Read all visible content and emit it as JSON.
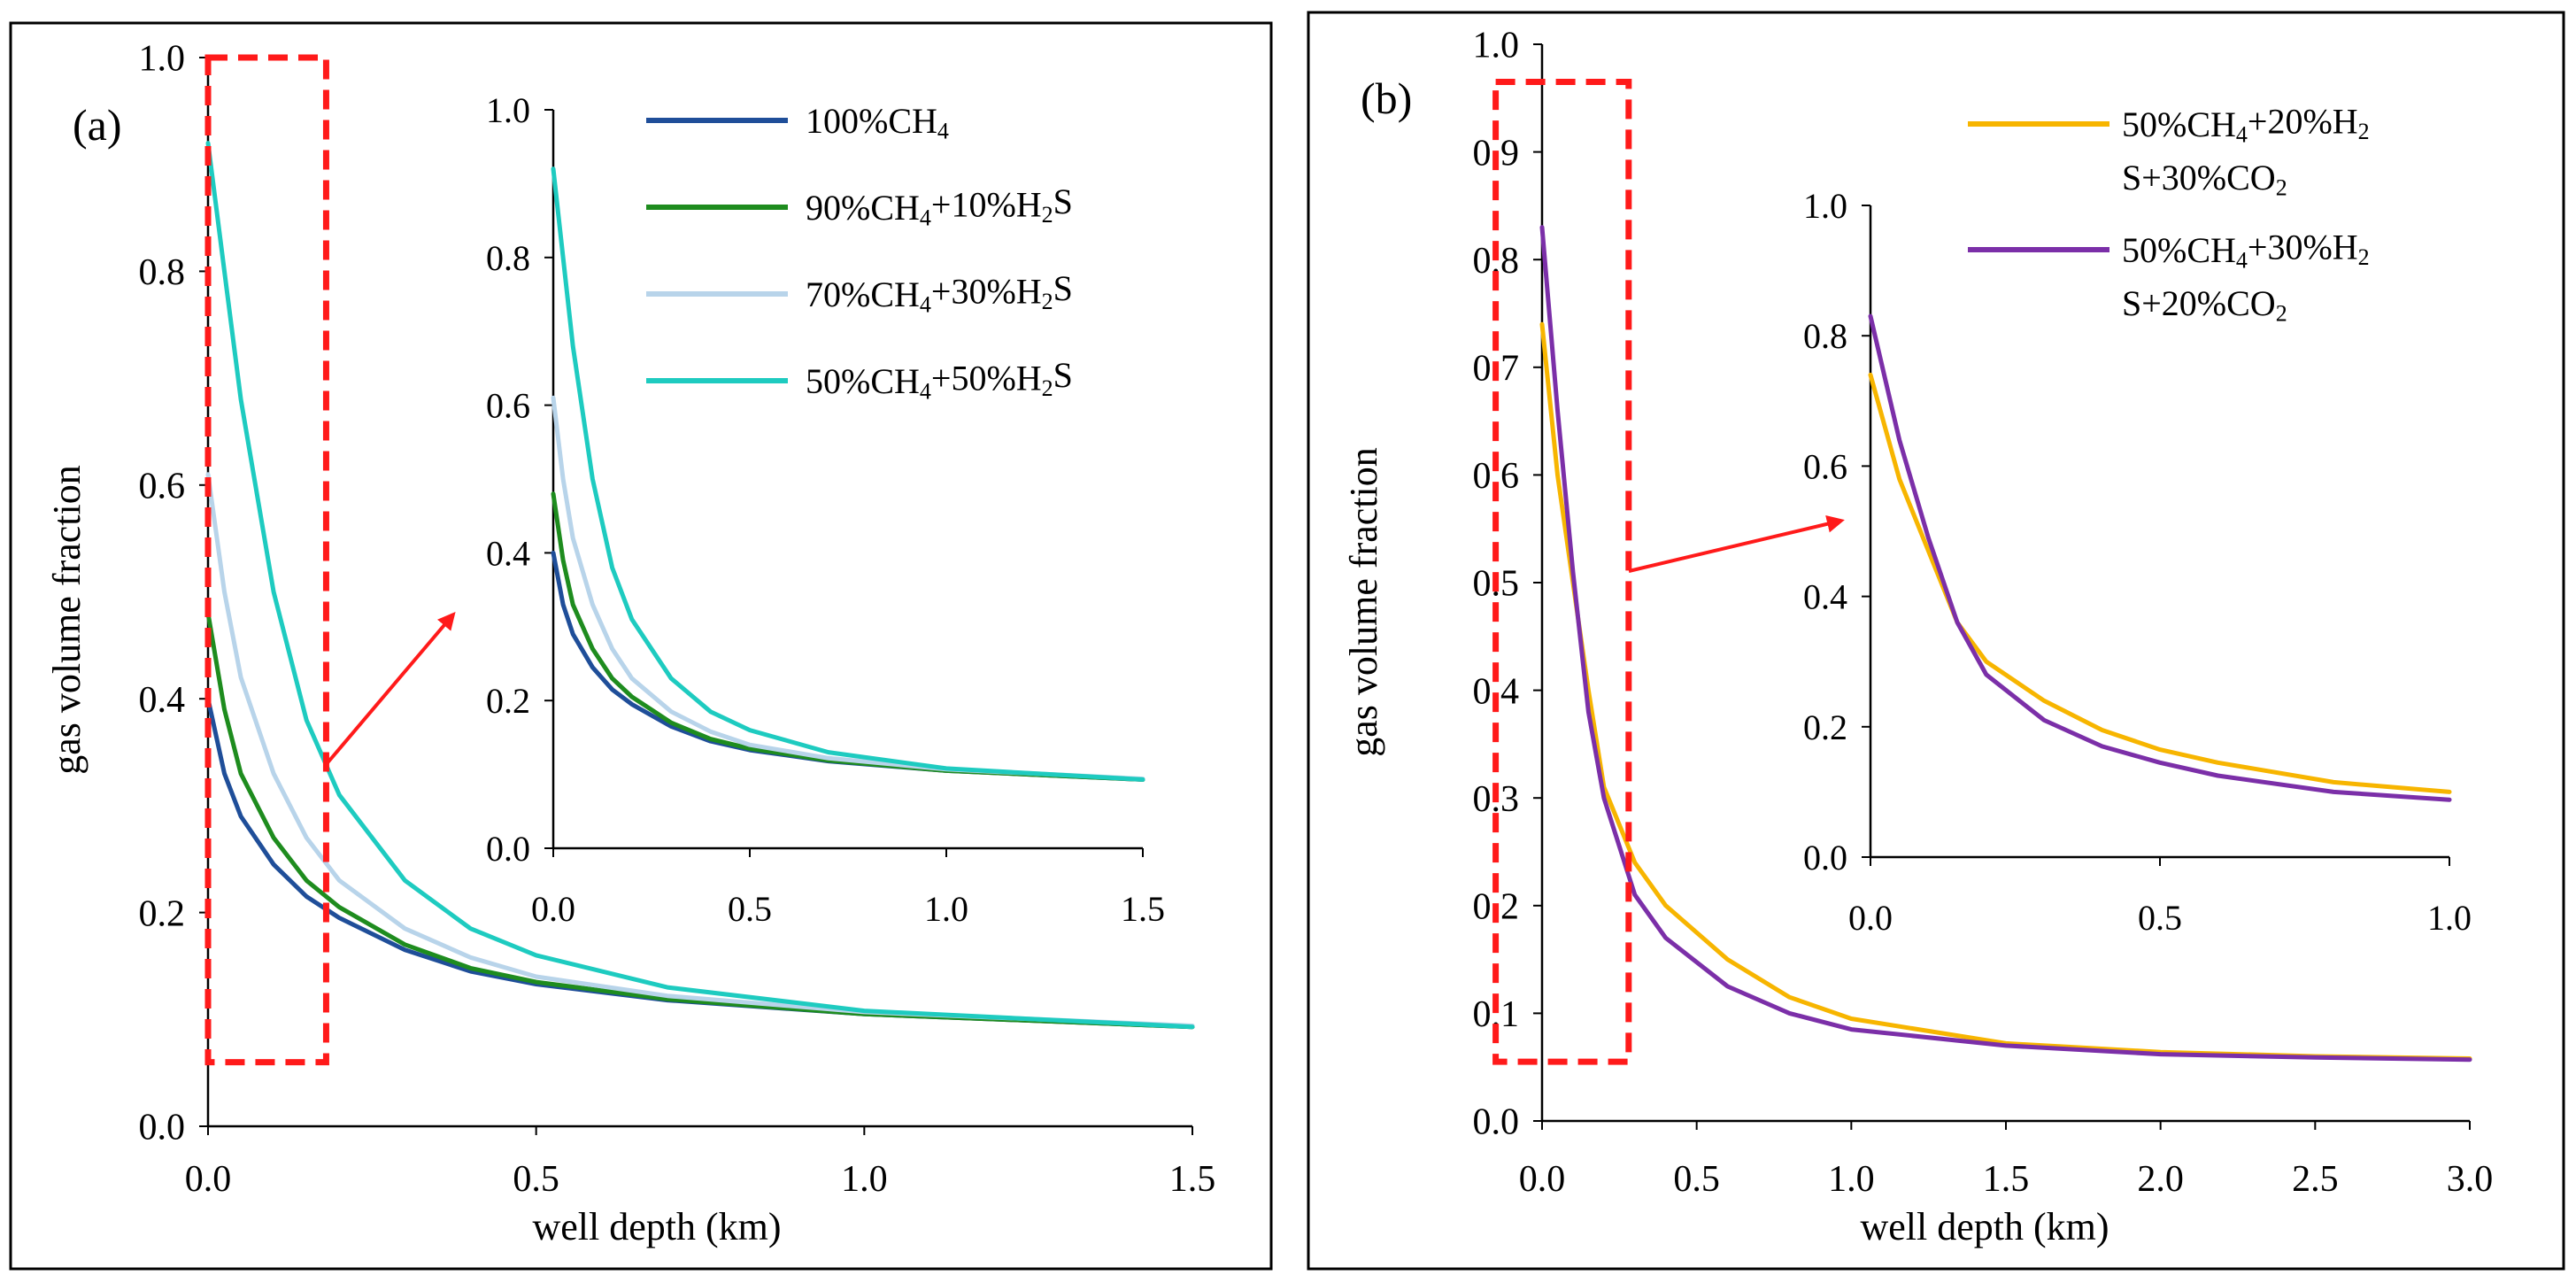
{
  "chart_data": [
    {
      "type": "line",
      "panel_label": "(a)",
      "xlabel": "well depth (km)",
      "ylabel": "gas volume fraction",
      "xlim": [
        0,
        1.5
      ],
      "ylim": [
        0,
        1.0
      ],
      "xticks": [
        "0.0",
        "0.5",
        "1.0",
        "1.5"
      ],
      "yticks": [
        "0.0",
        "0.2",
        "0.4",
        "0.6",
        "0.8",
        "1.0"
      ],
      "legend_position": "top-right",
      "highlight_box": {
        "x_range": [
          0,
          0.18
        ],
        "y_range": [
          0.06,
          1.0
        ],
        "color": "#ff1a1a"
      },
      "series": [
        {
          "name_parts": [
            [
              "100%CH",
              "normal"
            ],
            [
              "4",
              "sub"
            ]
          ],
          "color": "#1f4e99",
          "x": [
            0,
            0.025,
            0.05,
            0.1,
            0.15,
            0.2,
            0.3,
            0.4,
            0.5,
            0.7,
            1.0,
            1.5
          ],
          "values": [
            0.4,
            0.33,
            0.29,
            0.245,
            0.215,
            0.195,
            0.165,
            0.145,
            0.133,
            0.118,
            0.105,
            0.093
          ]
        },
        {
          "name_parts": [
            [
              "90%CH",
              "normal"
            ],
            [
              "4",
              "sub"
            ],
            [
              "+10%H",
              "normal"
            ],
            [
              "2",
              "sub"
            ],
            [
              "S",
              "normal"
            ]
          ],
          "color": "#1e8c1e",
          "x": [
            0,
            0.025,
            0.05,
            0.1,
            0.15,
            0.2,
            0.3,
            0.4,
            0.5,
            0.7,
            1.0,
            1.5
          ],
          "values": [
            0.48,
            0.39,
            0.33,
            0.27,
            0.23,
            0.205,
            0.17,
            0.148,
            0.135,
            0.119,
            0.105,
            0.093
          ]
        },
        {
          "name_parts": [
            [
              "70%CH",
              "normal"
            ],
            [
              "4",
              "sub"
            ],
            [
              "+30%H",
              "normal"
            ],
            [
              "2",
              "sub"
            ],
            [
              "S",
              "normal"
            ]
          ],
          "color": "#b8d4ea",
          "x": [
            0,
            0.025,
            0.05,
            0.1,
            0.15,
            0.2,
            0.3,
            0.4,
            0.5,
            0.7,
            1.0,
            1.5
          ],
          "values": [
            0.61,
            0.5,
            0.42,
            0.33,
            0.27,
            0.23,
            0.185,
            0.158,
            0.14,
            0.122,
            0.107,
            0.094
          ]
        },
        {
          "name_parts": [
            [
              "50%CH",
              "normal"
            ],
            [
              "4",
              "sub"
            ],
            [
              "+50%H",
              "normal"
            ],
            [
              "2",
              "sub"
            ],
            [
              "S",
              "normal"
            ]
          ],
          "color": "#1ecbc0",
          "x": [
            0,
            0.025,
            0.05,
            0.1,
            0.15,
            0.2,
            0.3,
            0.4,
            0.5,
            0.7,
            1.0,
            1.5
          ],
          "values": [
            0.92,
            0.8,
            0.68,
            0.5,
            0.38,
            0.31,
            0.23,
            0.185,
            0.16,
            0.13,
            0.108,
            0.093
          ]
        }
      ]
    },
    {
      "type": "line",
      "panel_label": "(a) inset",
      "xlim": [
        0,
        1.5
      ],
      "ylim": [
        0,
        1.0
      ],
      "xticks": [
        "0.0",
        "0.5",
        "1.0",
        "1.5"
      ],
      "yticks": [
        "0.0",
        "0.2",
        "0.4",
        "0.6",
        "0.8",
        "1.0"
      ],
      "series": [
        {
          "color": "#1f4e99",
          "x": [
            0,
            0.025,
            0.05,
            0.1,
            0.15,
            0.2,
            0.3,
            0.4,
            0.5,
            0.7,
            1.0,
            1.5
          ],
          "values": [
            0.4,
            0.33,
            0.29,
            0.245,
            0.215,
            0.195,
            0.165,
            0.145,
            0.133,
            0.118,
            0.105,
            0.093
          ]
        },
        {
          "color": "#1e8c1e",
          "x": [
            0,
            0.025,
            0.05,
            0.1,
            0.15,
            0.2,
            0.3,
            0.4,
            0.5,
            0.7,
            1.0,
            1.5
          ],
          "values": [
            0.48,
            0.39,
            0.33,
            0.27,
            0.23,
            0.205,
            0.17,
            0.148,
            0.135,
            0.119,
            0.105,
            0.093
          ]
        },
        {
          "color": "#b8d4ea",
          "x": [
            0,
            0.025,
            0.05,
            0.1,
            0.15,
            0.2,
            0.3,
            0.4,
            0.5,
            0.7,
            1.0,
            1.5
          ],
          "values": [
            0.61,
            0.5,
            0.42,
            0.33,
            0.27,
            0.23,
            0.185,
            0.158,
            0.14,
            0.122,
            0.107,
            0.094
          ]
        },
        {
          "color": "#1ecbc0",
          "x": [
            0,
            0.025,
            0.05,
            0.1,
            0.15,
            0.2,
            0.3,
            0.4,
            0.5,
            0.7,
            1.0,
            1.5
          ],
          "values": [
            0.92,
            0.8,
            0.68,
            0.5,
            0.38,
            0.31,
            0.23,
            0.185,
            0.16,
            0.13,
            0.108,
            0.093
          ]
        }
      ]
    },
    {
      "type": "line",
      "panel_label": "(b)",
      "xlabel": "well depth (km)",
      "ylabel": "gas volume fraction",
      "xlim": [
        0,
        3.0
      ],
      "ylim": [
        0,
        1.0
      ],
      "xticks": [
        "0.0",
        "0.5",
        "1.0",
        "1.5",
        "2.0",
        "2.5",
        "3.0"
      ],
      "yticks": [
        "0.0",
        "0.1",
        "0.2",
        "0.3",
        "0.4",
        "0.5",
        "0.6",
        "0.7",
        "0.8",
        "0.9",
        "1.0"
      ],
      "legend_position": "top-right",
      "highlight_box": {
        "x_range": [
          -0.15,
          0.28
        ],
        "y_range": [
          0.055,
          0.965
        ],
        "color": "#ff1a1a"
      },
      "series": [
        {
          "name_lines": [
            [
              [
                "50%CH",
                "normal"
              ],
              [
                "4",
                "sub"
              ],
              [
                "+20%H",
                "normal"
              ],
              [
                "2",
                "sub"
              ]
            ],
            [
              [
                "S+30%CO",
                "normal"
              ],
              [
                "2",
                "sub"
              ]
            ]
          ],
          "color": "#f7b500",
          "x": [
            0,
            0.05,
            0.1,
            0.15,
            0.2,
            0.3,
            0.4,
            0.6,
            0.8,
            1.0,
            1.5,
            2.0,
            2.5,
            3.0
          ],
          "values": [
            0.74,
            0.6,
            0.5,
            0.4,
            0.31,
            0.24,
            0.2,
            0.15,
            0.115,
            0.095,
            0.072,
            0.064,
            0.06,
            0.058
          ]
        },
        {
          "name_lines": [
            [
              [
                "50%CH",
                "normal"
              ],
              [
                "4",
                "sub"
              ],
              [
                "+30%H",
                "normal"
              ],
              [
                "2",
                "sub"
              ]
            ],
            [
              [
                "S+20%CO",
                "normal"
              ],
              [
                "2",
                "sub"
              ]
            ]
          ],
          "color": "#7b2fa8",
          "x": [
            0,
            0.05,
            0.1,
            0.15,
            0.2,
            0.3,
            0.4,
            0.6,
            0.8,
            1.0,
            1.5,
            2.0,
            2.5,
            3.0
          ],
          "values": [
            0.83,
            0.66,
            0.51,
            0.38,
            0.3,
            0.21,
            0.17,
            0.125,
            0.1,
            0.085,
            0.07,
            0.062,
            0.059,
            0.057
          ]
        }
      ]
    },
    {
      "type": "line",
      "panel_label": "(b) inset",
      "xlim": [
        0,
        1.0
      ],
      "ylim": [
        0,
        1.0
      ],
      "xticks": [
        "0.0",
        "0.5",
        "1.0"
      ],
      "yticks": [
        "0.0",
        "0.2",
        "0.4",
        "0.6",
        "0.8",
        "1.0"
      ],
      "series": [
        {
          "color": "#f7b500",
          "x": [
            0,
            0.05,
            0.1,
            0.15,
            0.2,
            0.3,
            0.4,
            0.5,
            0.6,
            0.8,
            1.0
          ],
          "values": [
            0.74,
            0.58,
            0.47,
            0.36,
            0.3,
            0.24,
            0.195,
            0.165,
            0.145,
            0.115,
            0.1
          ]
        },
        {
          "color": "#7b2fa8",
          "x": [
            0,
            0.05,
            0.1,
            0.15,
            0.2,
            0.3,
            0.4,
            0.5,
            0.6,
            0.8,
            1.0
          ],
          "values": [
            0.83,
            0.64,
            0.49,
            0.36,
            0.28,
            0.21,
            0.17,
            0.145,
            0.125,
            0.1,
            0.088
          ]
        }
      ]
    }
  ]
}
